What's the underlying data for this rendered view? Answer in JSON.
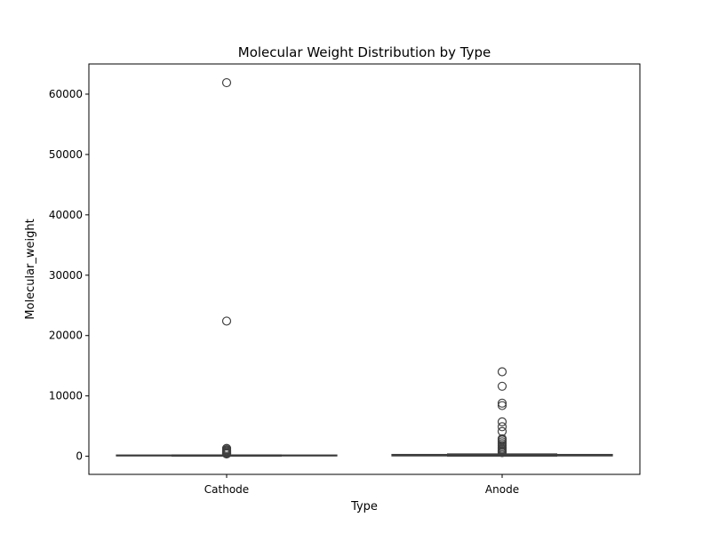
{
  "chart_data": {
    "type": "box",
    "title": "Molecular Weight Distribution by Type",
    "xlabel": "Type",
    "ylabel": "Molecular_weight",
    "categories": [
      "Cathode",
      "Anode"
    ],
    "ylim": [
      -3000,
      65000
    ],
    "yticks": [
      0,
      10000,
      20000,
      30000,
      40000,
      50000,
      60000
    ],
    "grid": false,
    "boxes": [
      {
        "category": "Cathode",
        "whisker_low": 20,
        "q1": 60,
        "median": 110,
        "q3": 210,
        "whisker_high": 230,
        "outliers": [
          61900,
          22400,
          1300,
          1100,
          950,
          800,
          650,
          520,
          430,
          380
        ]
      },
      {
        "category": "Anode",
        "whisker_low": 10,
        "q1": 60,
        "median": 150,
        "q3": 300,
        "whisker_high": 380,
        "outliers": [
          14000,
          11600,
          8800,
          8400,
          5700,
          4900,
          4100,
          2900,
          2700,
          2400,
          2100,
          1800,
          1550,
          1300,
          1100,
          900,
          750,
          600
        ]
      }
    ],
    "colors": {
      "box_fill": "#3b75af",
      "line": "#3f3f3f",
      "axis": "#000000"
    }
  }
}
